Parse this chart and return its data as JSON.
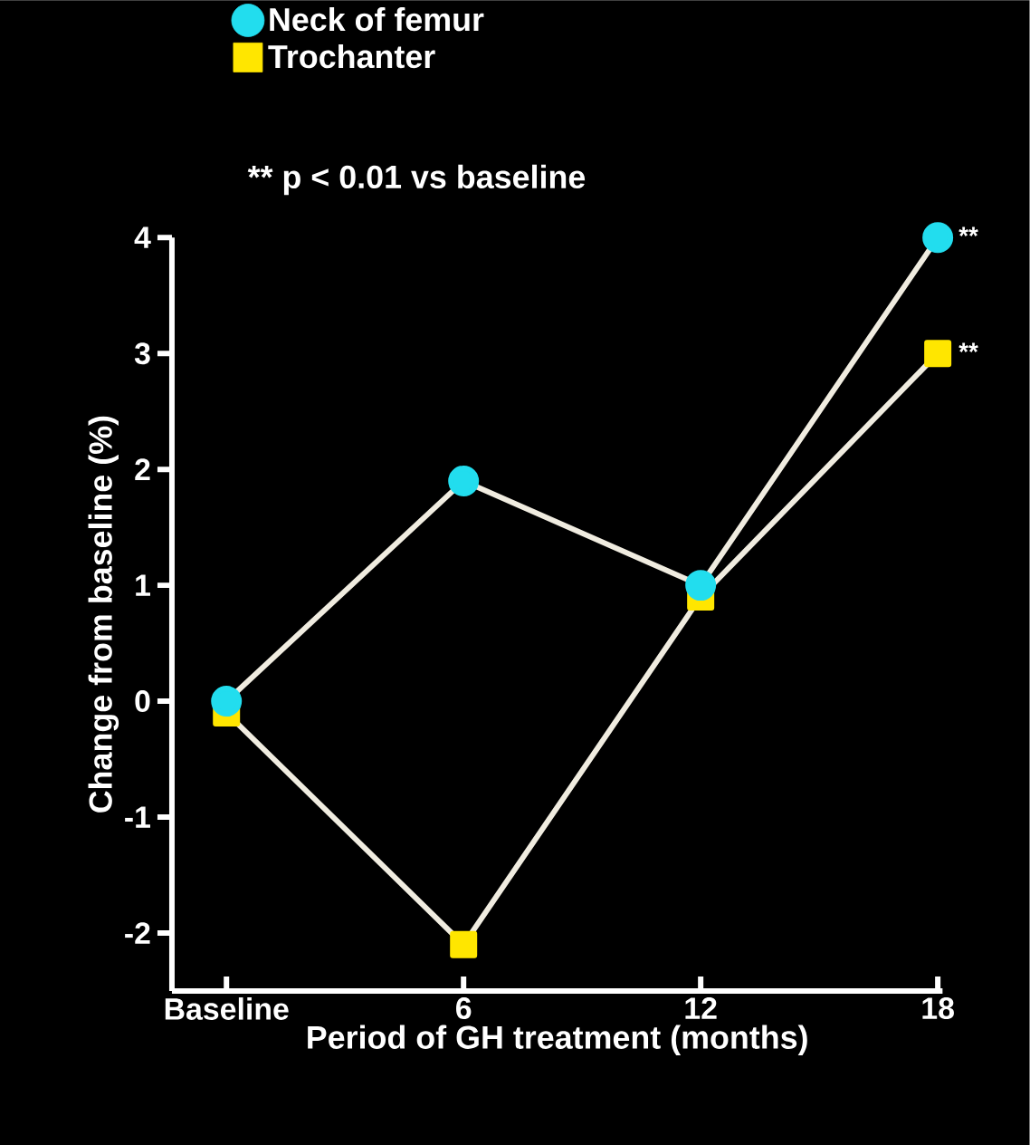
{
  "chart_data": {
    "type": "line",
    "xlabel": "Period of GH treatment (months)",
    "ylabel": "Change from baseline (%)",
    "categories": [
      "Baseline",
      "6",
      "12",
      "18"
    ],
    "series": [
      {
        "name": "Neck of femur",
        "color": "#22ddee",
        "marker": "circle",
        "values": [
          0,
          1.9,
          1.0,
          4.0
        ]
      },
      {
        "name": "Trochanter",
        "color": "#ffe600",
        "marker": "square",
        "values": [
          -0.1,
          -2.1,
          0.9,
          3.0
        ]
      }
    ],
    "ylim": [
      -2.5,
      4
    ],
    "yticks": [
      -2,
      -1,
      0,
      1,
      2,
      3,
      4
    ],
    "legend": "top",
    "grid": false,
    "annotations": [
      "** p < 0.01 vs baseline",
      {
        "text": "**",
        "x": "18",
        "y": 4.0
      },
      {
        "text": "**",
        "x": "18",
        "y": 3.0
      }
    ]
  }
}
